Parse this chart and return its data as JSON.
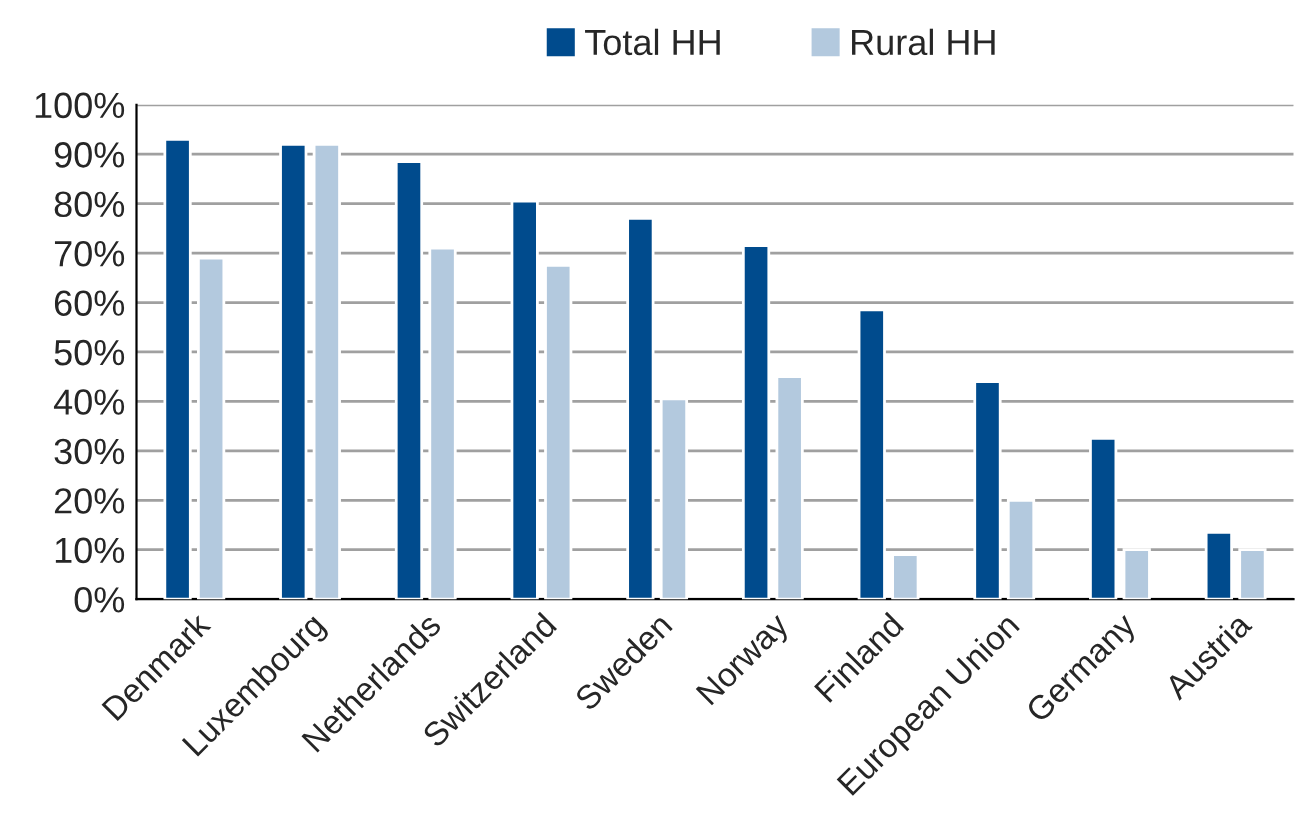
{
  "chart_data": {
    "type": "bar",
    "categories": [
      "Denmark",
      "Luxembourg",
      "Netherlands",
      "Switzerland",
      "Sweden",
      "Norway",
      "Finland",
      "European Union",
      "Germany",
      "Austria"
    ],
    "series": [
      {
        "name": "Total HH",
        "color": "#004b8d",
        "values": [
          93,
          92,
          88.5,
          80.5,
          77,
          71.5,
          58.5,
          44,
          32.5,
          13.5
        ]
      },
      {
        "name": "Rural HH",
        "color": "#b3c9de",
        "values": [
          69,
          92,
          71,
          67.5,
          40.5,
          45,
          9,
          20,
          10,
          10
        ]
      }
    ],
    "ylim": [
      0,
      100
    ],
    "yticks": [
      {
        "value": 0,
        "label": "0%"
      },
      {
        "value": 10,
        "label": "10%"
      },
      {
        "value": 20,
        "label": "20%"
      },
      {
        "value": 30,
        "label": "30%"
      },
      {
        "value": 40,
        "label": "40%"
      },
      {
        "value": 50,
        "label": "50%"
      },
      {
        "value": 60,
        "label": "60%"
      },
      {
        "value": 70,
        "label": "70%"
      },
      {
        "value": 80,
        "label": "80%"
      },
      {
        "value": 90,
        "label": "90%"
      },
      {
        "value": 100,
        "label": "100%"
      }
    ],
    "grid": "y",
    "legend": "top"
  }
}
